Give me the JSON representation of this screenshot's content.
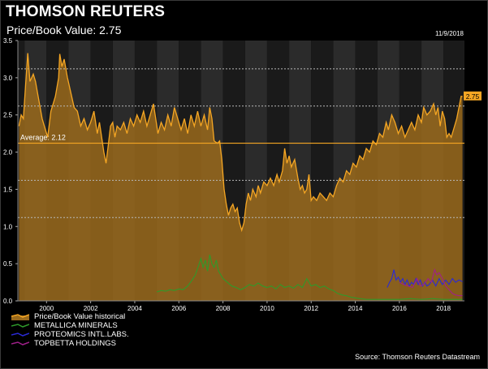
{
  "header": {
    "brand": "THOMSON REUTERS",
    "subtitle": "Price/Book Value: 2.75",
    "date": "11/9/2018"
  },
  "footer": {
    "source": "Source: Thomson Reuters Datastream"
  },
  "colors": {
    "accent": "#f5a623",
    "area_fill": "#9a6a1c",
    "green": "#2f9a2a",
    "blue": "#2a2ad6",
    "purple": "#a0208a",
    "grid_dash": "#b8b8b8"
  },
  "chart_data": {
    "type": "line",
    "xlim": [
      1998.7,
      2018.95
    ],
    "ylim": [
      0,
      3.5
    ],
    "x_ticks": [
      "2000",
      "2002",
      "2004",
      "2006",
      "2008",
      "2010",
      "2012",
      "2014",
      "2016",
      "2018"
    ],
    "y_ticks": [
      "0.0",
      "0.5",
      "1.0",
      "1.5",
      "2.0",
      "2.5",
      "3.0",
      "3.5"
    ],
    "average": {
      "value": 2.12,
      "label": "Average: 2.12"
    },
    "reference_lines": [
      3.12,
      2.62,
      1.62,
      1.12
    ],
    "last_value_label": "2.75",
    "series": [
      {
        "name": "Price/Book Value historical",
        "color": "#f5a623",
        "fill": true,
        "points": [
          [
            1998.75,
            2.35
          ],
          [
            1998.85,
            2.5
          ],
          [
            1998.95,
            2.45
          ],
          [
            1999.05,
            2.9
          ],
          [
            1999.15,
            3.33
          ],
          [
            1999.25,
            2.95
          ],
          [
            1999.4,
            3.05
          ],
          [
            1999.5,
            2.95
          ],
          [
            1999.65,
            2.7
          ],
          [
            1999.8,
            2.45
          ],
          [
            1999.95,
            2.3
          ],
          [
            2000.05,
            2.2
          ],
          [
            2000.2,
            2.55
          ],
          [
            2000.4,
            2.75
          ],
          [
            2000.55,
            3.0
          ],
          [
            2000.6,
            3.32
          ],
          [
            2000.7,
            3.15
          ],
          [
            2000.8,
            3.25
          ],
          [
            2000.95,
            3.0
          ],
          [
            2001.1,
            2.8
          ],
          [
            2001.25,
            2.6
          ],
          [
            2001.4,
            2.55
          ],
          [
            2001.55,
            2.35
          ],
          [
            2001.7,
            2.45
          ],
          [
            2001.85,
            2.3
          ],
          [
            2002.0,
            2.4
          ],
          [
            2002.15,
            2.55
          ],
          [
            2002.3,
            2.25
          ],
          [
            2002.4,
            2.4
          ],
          [
            2002.5,
            2.2
          ],
          [
            2002.6,
            2.0
          ],
          [
            2002.7,
            1.85
          ],
          [
            2002.8,
            2.1
          ],
          [
            2002.9,
            2.35
          ],
          [
            2003.0,
            2.4
          ],
          [
            2003.1,
            2.2
          ],
          [
            2003.2,
            2.35
          ],
          [
            2003.35,
            2.3
          ],
          [
            2003.5,
            2.4
          ],
          [
            2003.65,
            2.25
          ],
          [
            2003.8,
            2.45
          ],
          [
            2003.95,
            2.35
          ],
          [
            2004.1,
            2.5
          ],
          [
            2004.25,
            2.4
          ],
          [
            2004.4,
            2.55
          ],
          [
            2004.55,
            2.35
          ],
          [
            2004.7,
            2.5
          ],
          [
            2004.85,
            2.65
          ],
          [
            2004.95,
            2.45
          ],
          [
            2005.05,
            2.25
          ],
          [
            2005.2,
            2.4
          ],
          [
            2005.35,
            2.3
          ],
          [
            2005.5,
            2.5
          ],
          [
            2005.65,
            2.35
          ],
          [
            2005.8,
            2.6
          ],
          [
            2005.95,
            2.45
          ],
          [
            2006.1,
            2.3
          ],
          [
            2006.25,
            2.45
          ],
          [
            2006.4,
            2.25
          ],
          [
            2006.55,
            2.5
          ],
          [
            2006.7,
            2.35
          ],
          [
            2006.85,
            2.55
          ],
          [
            2007.0,
            2.35
          ],
          [
            2007.15,
            2.5
          ],
          [
            2007.3,
            2.3
          ],
          [
            2007.4,
            2.6
          ],
          [
            2007.5,
            2.45
          ],
          [
            2007.6,
            2.15
          ],
          [
            2007.75,
            2.12
          ],
          [
            2007.85,
            2.15
          ],
          [
            2007.95,
            1.9
          ],
          [
            2008.05,
            1.5
          ],
          [
            2008.15,
            1.3
          ],
          [
            2008.25,
            1.15
          ],
          [
            2008.35,
            1.25
          ],
          [
            2008.45,
            1.3
          ],
          [
            2008.55,
            1.2
          ],
          [
            2008.65,
            1.25
          ],
          [
            2008.75,
            1.05
          ],
          [
            2008.85,
            0.95
          ],
          [
            2008.95,
            1.05
          ],
          [
            2009.05,
            1.3
          ],
          [
            2009.15,
            1.45
          ],
          [
            2009.25,
            1.35
          ],
          [
            2009.35,
            1.5
          ],
          [
            2009.5,
            1.4
          ],
          [
            2009.6,
            1.55
          ],
          [
            2009.7,
            1.45
          ],
          [
            2009.85,
            1.6
          ],
          [
            2010.0,
            1.55
          ],
          [
            2010.15,
            1.65
          ],
          [
            2010.3,
            1.55
          ],
          [
            2010.45,
            1.7
          ],
          [
            2010.55,
            1.6
          ],
          [
            2010.7,
            1.75
          ],
          [
            2010.8,
            2.05
          ],
          [
            2010.9,
            1.85
          ],
          [
            2011.0,
            1.95
          ],
          [
            2011.1,
            1.8
          ],
          [
            2011.25,
            1.9
          ],
          [
            2011.4,
            1.65
          ],
          [
            2011.5,
            1.5
          ],
          [
            2011.6,
            1.55
          ],
          [
            2011.7,
            1.45
          ],
          [
            2011.8,
            1.5
          ],
          [
            2011.9,
            1.7
          ],
          [
            2012.0,
            1.35
          ],
          [
            2012.1,
            1.4
          ],
          [
            2012.25,
            1.35
          ],
          [
            2012.4,
            1.45
          ],
          [
            2012.55,
            1.4
          ],
          [
            2012.7,
            1.35
          ],
          [
            2012.85,
            1.45
          ],
          [
            2013.0,
            1.4
          ],
          [
            2013.15,
            1.55
          ],
          [
            2013.3,
            1.65
          ],
          [
            2013.45,
            1.6
          ],
          [
            2013.6,
            1.75
          ],
          [
            2013.75,
            1.7
          ],
          [
            2013.9,
            1.85
          ],
          [
            2014.05,
            1.8
          ],
          [
            2014.2,
            1.95
          ],
          [
            2014.35,
            1.9
          ],
          [
            2014.5,
            2.05
          ],
          [
            2014.65,
            2.0
          ],
          [
            2014.8,
            2.15
          ],
          [
            2014.95,
            2.1
          ],
          [
            2015.1,
            2.25
          ],
          [
            2015.25,
            2.2
          ],
          [
            2015.4,
            2.4
          ],
          [
            2015.5,
            2.3
          ],
          [
            2015.65,
            2.5
          ],
          [
            2015.8,
            2.4
          ],
          [
            2015.95,
            2.25
          ],
          [
            2016.1,
            2.35
          ],
          [
            2016.25,
            2.2
          ],
          [
            2016.4,
            2.3
          ],
          [
            2016.55,
            2.4
          ],
          [
            2016.7,
            2.3
          ],
          [
            2016.85,
            2.5
          ],
          [
            2017.0,
            2.4
          ],
          [
            2017.1,
            2.6
          ],
          [
            2017.25,
            2.5
          ],
          [
            2017.4,
            2.55
          ],
          [
            2017.55,
            2.65
          ],
          [
            2017.65,
            2.5
          ],
          [
            2017.75,
            2.6
          ],
          [
            2017.85,
            2.35
          ],
          [
            2017.95,
            2.55
          ],
          [
            2018.05,
            2.45
          ],
          [
            2018.15,
            2.2
          ],
          [
            2018.25,
            2.25
          ],
          [
            2018.35,
            2.2
          ],
          [
            2018.5,
            2.35
          ],
          [
            2018.6,
            2.45
          ],
          [
            2018.7,
            2.6
          ],
          [
            2018.8,
            2.75
          ],
          [
            2018.86,
            2.75
          ]
        ]
      },
      {
        "name": "METALLICA MINERALS",
        "color": "#2f9a2a",
        "points": [
          [
            2005.0,
            0.12
          ],
          [
            2005.2,
            0.14
          ],
          [
            2005.4,
            0.13
          ],
          [
            2005.6,
            0.15
          ],
          [
            2005.8,
            0.14
          ],
          [
            2006.0,
            0.16
          ],
          [
            2006.2,
            0.15
          ],
          [
            2006.4,
            0.2
          ],
          [
            2006.6,
            0.28
          ],
          [
            2006.75,
            0.35
          ],
          [
            2006.9,
            0.48
          ],
          [
            2007.0,
            0.57
          ],
          [
            2007.1,
            0.45
          ],
          [
            2007.2,
            0.55
          ],
          [
            2007.3,
            0.4
          ],
          [
            2007.4,
            0.62
          ],
          [
            2007.5,
            0.5
          ],
          [
            2007.6,
            0.45
          ],
          [
            2007.7,
            0.55
          ],
          [
            2007.8,
            0.4
          ],
          [
            2007.9,
            0.35
          ],
          [
            2008.0,
            0.3
          ],
          [
            2008.2,
            0.25
          ],
          [
            2008.4,
            0.2
          ],
          [
            2008.6,
            0.18
          ],
          [
            2008.8,
            0.15
          ],
          [
            2009.0,
            0.18
          ],
          [
            2009.2,
            0.22
          ],
          [
            2009.4,
            0.2
          ],
          [
            2009.6,
            0.24
          ],
          [
            2009.8,
            0.2
          ],
          [
            2010.0,
            0.18
          ],
          [
            2010.2,
            0.2
          ],
          [
            2010.4,
            0.16
          ],
          [
            2010.6,
            0.22
          ],
          [
            2010.8,
            0.18
          ],
          [
            2011.0,
            0.2
          ],
          [
            2011.2,
            0.17
          ],
          [
            2011.4,
            0.22
          ],
          [
            2011.6,
            0.18
          ],
          [
            2011.8,
            0.3
          ],
          [
            2012.0,
            0.2
          ],
          [
            2012.2,
            0.22
          ],
          [
            2012.4,
            0.18
          ],
          [
            2012.6,
            0.2
          ],
          [
            2012.8,
            0.16
          ],
          [
            2013.0,
            0.14
          ],
          [
            2013.2,
            0.1
          ],
          [
            2013.4,
            0.08
          ],
          [
            2013.6,
            0.07
          ],
          [
            2013.8,
            0.05
          ],
          [
            2014.0,
            0.04
          ],
          [
            2014.2,
            0.03
          ],
          [
            2014.5,
            0.02
          ],
          [
            2015.0,
            0.02
          ],
          [
            2015.5,
            0.02
          ],
          [
            2016.0,
            0.02
          ],
          [
            2016.5,
            0.03
          ],
          [
            2017.0,
            0.02
          ],
          [
            2017.5,
            0.03
          ],
          [
            2018.0,
            0.02
          ],
          [
            2018.5,
            0.02
          ],
          [
            2018.86,
            0.02
          ]
        ]
      },
      {
        "name": "PROTEOMICS INTL.LABS.",
        "color": "#2a2ad6",
        "points": [
          [
            2015.45,
            0.18
          ],
          [
            2015.55,
            0.25
          ],
          [
            2015.65,
            0.3
          ],
          [
            2015.75,
            0.42
          ],
          [
            2015.85,
            0.28
          ],
          [
            2015.95,
            0.32
          ],
          [
            2016.05,
            0.25
          ],
          [
            2016.15,
            0.3
          ],
          [
            2016.25,
            0.22
          ],
          [
            2016.35,
            0.28
          ],
          [
            2016.45,
            0.2
          ],
          [
            2016.55,
            0.25
          ],
          [
            2016.65,
            0.22
          ],
          [
            2016.75,
            0.3
          ],
          [
            2016.85,
            0.22
          ],
          [
            2016.95,
            0.28
          ],
          [
            2017.05,
            0.2
          ],
          [
            2017.15,
            0.25
          ],
          [
            2017.25,
            0.2
          ],
          [
            2017.35,
            0.22
          ],
          [
            2017.5,
            0.28
          ],
          [
            2017.65,
            0.2
          ],
          [
            2017.8,
            0.3
          ],
          [
            2017.95,
            0.22
          ],
          [
            2018.1,
            0.28
          ],
          [
            2018.25,
            0.22
          ],
          [
            2018.4,
            0.3
          ],
          [
            2018.55,
            0.25
          ],
          [
            2018.7,
            0.28
          ],
          [
            2018.86,
            0.26
          ]
        ]
      },
      {
        "name": "TOPBETTA HOLDINGS",
        "color": "#a0208a",
        "points": [
          [
            2016.0,
            0.25
          ],
          [
            2016.2,
            0.22
          ],
          [
            2016.4,
            0.2
          ],
          [
            2016.6,
            0.18
          ],
          [
            2016.8,
            0.3
          ],
          [
            2016.95,
            0.2
          ],
          [
            2017.1,
            0.22
          ],
          [
            2017.3,
            0.3
          ],
          [
            2017.45,
            0.25
          ],
          [
            2017.6,
            0.42
          ],
          [
            2017.7,
            0.35
          ],
          [
            2017.8,
            0.38
          ],
          [
            2017.95,
            0.3
          ],
          [
            2018.1,
            0.2
          ],
          [
            2018.25,
            0.15
          ],
          [
            2018.4,
            0.1
          ],
          [
            2018.55,
            0.08
          ],
          [
            2018.7,
            0.07
          ],
          [
            2018.86,
            0.07
          ]
        ]
      }
    ]
  }
}
